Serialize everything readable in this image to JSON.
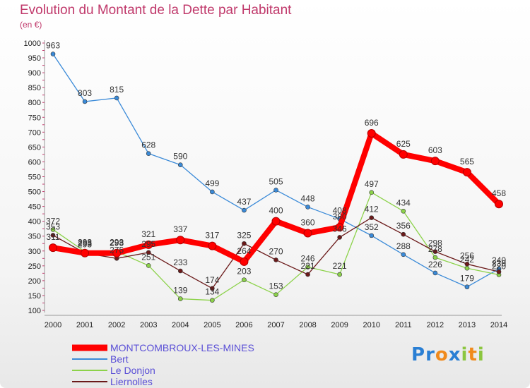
{
  "title": "Evolution du Montant de la Dette par Habitant",
  "subtitle": "(en €)",
  "logo": {
    "text": "Proxiti",
    "letters": [
      {
        "ch": "P",
        "color": "#2a7fd4"
      },
      {
        "ch": "r",
        "color": "#2a7fd4"
      },
      {
        "ch": "o",
        "color": "#f08a1c"
      },
      {
        "ch": "x",
        "color": "#2a7fd4"
      },
      {
        "ch": "i",
        "color": "#8cc63f"
      },
      {
        "ch": "t",
        "color": "#f08a1c"
      },
      {
        "ch": "i",
        "color": "#8cc63f"
      }
    ]
  },
  "chart_data": {
    "type": "line",
    "title": "Evolution du Montant de la Dette par Habitant",
    "subtitle": "(en €)",
    "x": [
      2000,
      2001,
      2002,
      2003,
      2004,
      2005,
      2006,
      2007,
      2008,
      2009,
      2010,
      2011,
      2012,
      2013,
      2014
    ],
    "ylim": [
      100,
      1000
    ],
    "yticks": [
      100,
      150,
      200,
      250,
      300,
      350,
      400,
      450,
      500,
      550,
      600,
      650,
      700,
      750,
      800,
      850,
      900,
      950,
      1000
    ],
    "grid": false,
    "legend_position": "bottom-left",
    "series": [
      {
        "name": "MONTCOMBROUX-LES-MINES",
        "color": "#ff0000",
        "values": [
          311,
          293,
          293,
          321,
          337,
          317,
          264,
          400,
          360,
          380,
          696,
          625,
          603,
          565,
          458
        ]
      },
      {
        "name": "Bert",
        "color": "#3a8ad8",
        "values": [
          963,
          803,
          815,
          628,
          590,
          499,
          437,
          505,
          448,
          408,
          352,
          288,
          226,
          179,
          240
        ]
      },
      {
        "name": "Le Donjon",
        "color": "#8cd24a",
        "values": [
          372,
          298,
          298,
          251,
          139,
          134,
          203,
          153,
          246,
          221,
          497,
          434,
          278,
          242,
          220
        ]
      },
      {
        "name": "Liernolles",
        "color": "#6b1a1a",
        "values": [
          353,
          293,
          275,
          295,
          233,
          174,
          325,
          270,
          221,
          346,
          412,
          356,
          298,
          256,
          230
        ]
      }
    ]
  }
}
